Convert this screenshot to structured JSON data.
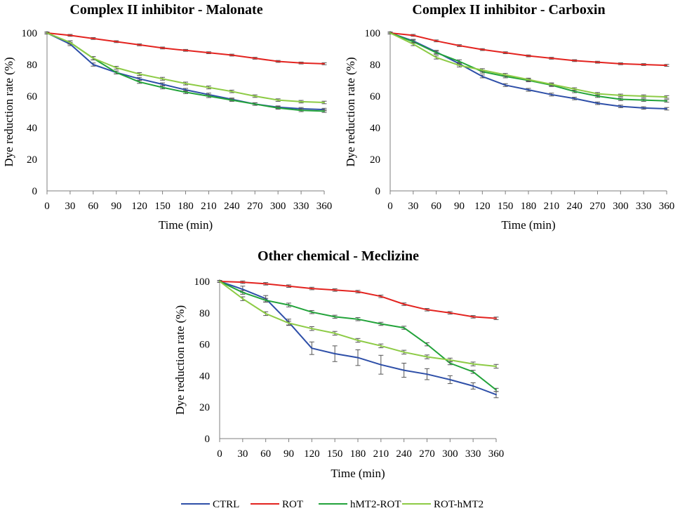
{
  "chart_data": [
    {
      "type": "line",
      "title": "Complex II inhibitor - Malonate",
      "xlabel": "Time (min)",
      "ylabel": "Dye reduction rate (%)",
      "x": [
        0,
        30,
        60,
        90,
        120,
        150,
        180,
        210,
        240,
        270,
        300,
        330,
        360
      ],
      "ylim": [
        0,
        100
      ],
      "yticks": [
        0,
        20,
        40,
        60,
        80,
        100
      ],
      "series": [
        {
          "name": "CTRL",
          "values": [
            100,
            93,
            80,
            75,
            71,
            67.5,
            64,
            61,
            58,
            55,
            53,
            52,
            51.5
          ],
          "err": [
            0.6,
            1,
            1,
            0.9,
            0.9,
            0.9,
            0.9,
            0.9,
            0.8,
            0.8,
            0.8,
            0.8,
            0.8
          ]
        },
        {
          "name": "ROT",
          "values": [
            100,
            98.5,
            96.5,
            94.5,
            92.5,
            90.5,
            89,
            87.5,
            86,
            84,
            82,
            81,
            80.5
          ],
          "err": [
            0.5,
            0.6,
            0.6,
            0.6,
            0.6,
            0.6,
            0.6,
            0.6,
            0.6,
            0.6,
            0.6,
            0.6,
            0.6
          ]
        },
        {
          "name": "hMT2-ROT",
          "values": [
            100,
            94,
            84,
            75,
            69,
            65.5,
            62.5,
            60,
            57.5,
            55,
            52.5,
            51,
            50.5
          ],
          "err": [
            0.6,
            1,
            1,
            0.9,
            0.9,
            0.9,
            0.9,
            0.9,
            0.8,
            0.8,
            0.8,
            0.8,
            0.8
          ]
        },
        {
          "name": "ROT-hMT2",
          "values": [
            100,
            94,
            84,
            78,
            74,
            71,
            68,
            65.5,
            63,
            60,
            57.5,
            56.5,
            56
          ],
          "err": [
            0.6,
            1,
            1,
            0.9,
            0.9,
            0.9,
            0.9,
            0.9,
            0.8,
            0.8,
            0.8,
            0.8,
            0.8
          ]
        }
      ]
    },
    {
      "type": "line",
      "title": "Complex II inhibitor - Carboxin",
      "xlabel": "Time (min)",
      "ylabel": "Dye reduction rate (%)",
      "x": [
        0,
        30,
        60,
        90,
        120,
        150,
        180,
        210,
        240,
        270,
        300,
        330,
        360
      ],
      "ylim": [
        0,
        100
      ],
      "yticks": [
        0,
        20,
        40,
        60,
        80,
        100
      ],
      "series": [
        {
          "name": "CTRL",
          "values": [
            100,
            95,
            88,
            80.5,
            72.5,
            67,
            64,
            61,
            58.5,
            55.5,
            53.5,
            52.5,
            52
          ],
          "err": [
            0.6,
            1,
            1,
            1,
            0.9,
            0.9,
            0.9,
            0.9,
            0.8,
            0.8,
            0.8,
            0.8,
            0.8
          ]
        },
        {
          "name": "ROT",
          "values": [
            100,
            98.5,
            95,
            92,
            89.5,
            87.5,
            85.5,
            84,
            82.5,
            81.5,
            80.5,
            80,
            79.5
          ],
          "err": [
            0.5,
            0.6,
            0.6,
            0.6,
            0.6,
            0.6,
            0.6,
            0.6,
            0.6,
            0.6,
            0.6,
            0.6,
            0.6
          ]
        },
        {
          "name": "hMT2-ROT",
          "values": [
            100,
            94.5,
            87.5,
            82,
            75.5,
            72.5,
            70,
            67,
            63,
            60,
            58,
            57.5,
            57
          ],
          "err": [
            0.6,
            1,
            1,
            1,
            0.9,
            0.9,
            0.9,
            0.9,
            0.8,
            0.8,
            0.8,
            0.8,
            0.8
          ]
        },
        {
          "name": "ROT-hMT2",
          "values": [
            100,
            93,
            84.5,
            79.5,
            76.5,
            73.5,
            70.5,
            67.5,
            64.5,
            61.5,
            60.5,
            60,
            59.5
          ],
          "err": [
            0.6,
            1,
            1,
            1,
            0.9,
            0.9,
            0.9,
            0.9,
            0.8,
            0.8,
            0.8,
            0.8,
            0.8
          ]
        }
      ]
    },
    {
      "type": "line",
      "title": "Other chemical - Meclizine",
      "xlabel": "Time (min)",
      "ylabel": "Dye reduction rate (%)",
      "x": [
        0,
        30,
        60,
        90,
        120,
        150,
        180,
        210,
        240,
        270,
        300,
        330,
        360
      ],
      "ylim": [
        0,
        100
      ],
      "yticks": [
        0,
        20,
        40,
        60,
        80,
        100
      ],
      "series": [
        {
          "name": "CTRL",
          "values": [
            100,
            95,
            89,
            74,
            57.5,
            54,
            51.5,
            47,
            43.5,
            41,
            37.5,
            33.5,
            28
          ],
          "err": [
            0.6,
            2,
            2,
            2,
            4,
            5,
            5,
            6,
            4.5,
            3.5,
            2.5,
            2,
            2
          ]
        },
        {
          "name": "ROT",
          "values": [
            100,
            99.5,
            98.5,
            97,
            95.5,
            94.5,
            93.5,
            90.5,
            85.5,
            82,
            80,
            77.5,
            76.5
          ],
          "err": [
            0.5,
            0.8,
            0.8,
            0.8,
            0.8,
            0.8,
            0.8,
            0.8,
            0.8,
            0.8,
            0.8,
            0.8,
            0.8
          ]
        },
        {
          "name": "hMT2-ROT",
          "values": [
            100,
            93,
            88,
            85,
            80.5,
            77.5,
            76,
            73,
            70.5,
            60,
            48,
            42.5,
            31
          ],
          "err": [
            0.6,
            1.2,
            1.2,
            1.2,
            1,
            1,
            1,
            1,
            1,
            1,
            1,
            1,
            1
          ]
        },
        {
          "name": "ROT-hMT2",
          "values": [
            100,
            89,
            79.5,
            73.5,
            70,
            67,
            62.5,
            59,
            55,
            52,
            50,
            47.5,
            46
          ],
          "err": [
            0.6,
            1.2,
            1.2,
            1.2,
            1.2,
            1.2,
            1.2,
            1.2,
            1.2,
            1.2,
            1.2,
            1.2,
            1.2
          ]
        }
      ]
    }
  ],
  "legend": {
    "placement": "bottom-center",
    "entries": [
      {
        "name": "CTRL",
        "color": "#2E4FA8"
      },
      {
        "name": "ROT",
        "color": "#E3231F"
      },
      {
        "name": "hMT2-ROT",
        "color": "#22A33A"
      },
      {
        "name": "ROT-hMT2",
        "color": "#8DCB45"
      }
    ]
  },
  "colors": {
    "CTRL": "#2E4FA8",
    "ROT": "#E3231F",
    "hMT2-ROT": "#22A33A",
    "ROT-hMT2": "#8DCB45",
    "error_bar": "#555555",
    "axis": "#7f7f7f"
  }
}
